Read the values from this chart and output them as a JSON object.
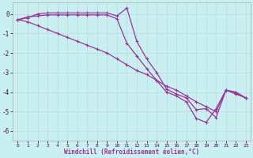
{
  "xlabel": "Windchill (Refroidissement éolien,°C)",
  "background_color": "#c8f0f0",
  "grid_color": "#c0dede",
  "line_color": "#993399",
  "x_values": [
    0,
    1,
    2,
    3,
    4,
    5,
    6,
    7,
    8,
    9,
    10,
    11,
    12,
    13,
    14,
    15,
    16,
    17,
    18,
    19,
    20,
    21,
    22,
    23
  ],
  "series": [
    [
      -0.3,
      -0.2,
      0.0,
      0.05,
      0.05,
      0.05,
      0.05,
      0.05,
      0.05,
      0.05,
      -0.1,
      0.3,
      -1.4,
      -2.3,
      -3.0,
      -3.85,
      -4.1,
      -4.3,
      -4.9,
      -4.85,
      -5.3,
      -3.9,
      -4.0,
      -4.3
    ],
    [
      -0.3,
      -0.15,
      -0.1,
      -0.05,
      -0.05,
      -0.05,
      -0.05,
      -0.05,
      -0.05,
      -0.05,
      -0.25,
      -1.5,
      -2.15,
      -2.8,
      -3.4,
      -4.0,
      -4.2,
      -4.5,
      -5.35,
      -5.55,
      -4.85,
      -3.9,
      -4.1,
      -4.3
    ],
    [
      -0.3,
      -0.4,
      -0.6,
      -0.8,
      -1.0,
      -1.2,
      -1.4,
      -1.6,
      -1.8,
      -2.0,
      -2.3,
      -2.6,
      -2.9,
      -3.1,
      -3.4,
      -3.7,
      -3.9,
      -4.2,
      -4.5,
      -4.75,
      -5.0,
      -3.9,
      -4.05,
      -4.3
    ]
  ],
  "ylim": [
    -6.5,
    0.6
  ],
  "xlim": [
    -0.5,
    23.5
  ],
  "yticks": [
    0,
    -1,
    -2,
    -3,
    -4,
    -5,
    -6
  ],
  "xticks": [
    0,
    1,
    2,
    3,
    4,
    5,
    6,
    7,
    8,
    9,
    10,
    11,
    12,
    13,
    14,
    15,
    16,
    17,
    18,
    19,
    20,
    21,
    22,
    23
  ]
}
